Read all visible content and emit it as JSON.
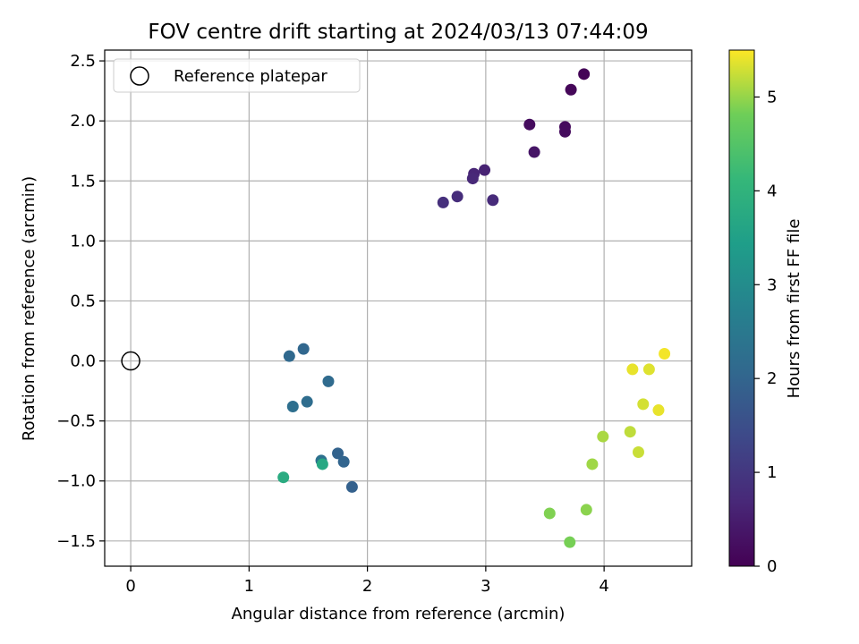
{
  "chart_data": {
    "type": "scatter",
    "title": "FOV centre drift starting at 2024/03/13 07:44:09",
    "xlabel": "Angular distance from reference (arcmin)",
    "ylabel": "Rotation from reference (arcmin)",
    "xlim": [
      -0.22,
      4.74
    ],
    "ylim": [
      -1.71,
      2.59
    ],
    "x_ticks": [
      0,
      1,
      2,
      3,
      4
    ],
    "y_ticks": [
      -1.5,
      -1.0,
      -0.5,
      0.0,
      0.5,
      1.0,
      1.5,
      2.0,
      2.5
    ],
    "x_tick_labels": [
      "0",
      "1",
      "2",
      "3",
      "4"
    ],
    "y_tick_labels": [
      "−1.5",
      "−1.0",
      "−0.5",
      "0.0",
      "0.5",
      "1.0",
      "1.5",
      "2.0",
      "2.5"
    ],
    "grid": true,
    "legend": {
      "placement": "top-left",
      "entries": [
        "Reference platepar"
      ]
    },
    "reference_point": {
      "x": 0.0,
      "y": 0.0
    },
    "colorbar": {
      "label": "Hours from first FF file",
      "colormap": "viridis",
      "range": [
        0,
        5.5
      ],
      "ticks": [
        0,
        1,
        2,
        3,
        4,
        5
      ],
      "tick_labels": [
        "0",
        "1",
        "2",
        "3",
        "4",
        "5"
      ]
    },
    "points": [
      {
        "x": 3.83,
        "y": 2.39,
        "hours": 0.05
      },
      {
        "x": 3.72,
        "y": 2.26,
        "hours": 0.1
      },
      {
        "x": 3.37,
        "y": 1.97,
        "hours": 0.2
      },
      {
        "x": 3.67,
        "y": 1.95,
        "hours": 0.15
      },
      {
        "x": 3.67,
        "y": 1.91,
        "hours": 0.18
      },
      {
        "x": 3.41,
        "y": 1.74,
        "hours": 0.35
      },
      {
        "x": 2.99,
        "y": 1.59,
        "hours": 0.6
      },
      {
        "x": 2.9,
        "y": 1.56,
        "hours": 0.65
      },
      {
        "x": 2.89,
        "y": 1.52,
        "hours": 0.7
      },
      {
        "x": 2.76,
        "y": 1.37,
        "hours": 0.8
      },
      {
        "x": 2.64,
        "y": 1.32,
        "hours": 0.85
      },
      {
        "x": 3.06,
        "y": 1.34,
        "hours": 0.75
      },
      {
        "x": 1.46,
        "y": 0.1,
        "hours": 2.05
      },
      {
        "x": 1.34,
        "y": 0.04,
        "hours": 2.1
      },
      {
        "x": 1.67,
        "y": -0.17,
        "hours": 2.15
      },
      {
        "x": 1.49,
        "y": -0.34,
        "hours": 2.2
      },
      {
        "x": 1.37,
        "y": -0.38,
        "hours": 2.25
      },
      {
        "x": 1.75,
        "y": -0.77,
        "hours": 1.95
      },
      {
        "x": 1.61,
        "y": -0.83,
        "hours": 2.3
      },
      {
        "x": 1.8,
        "y": -0.84,
        "hours": 2.0
      },
      {
        "x": 1.87,
        "y": -1.05,
        "hours": 1.9
      },
      {
        "x": 1.62,
        "y": -0.86,
        "hours": 3.7
      },
      {
        "x": 1.29,
        "y": -0.97,
        "hours": 3.8
      },
      {
        "x": 4.51,
        "y": 0.06,
        "hours": 5.45
      },
      {
        "x": 4.24,
        "y": -0.07,
        "hours": 5.4
      },
      {
        "x": 4.38,
        "y": -0.07,
        "hours": 5.35
      },
      {
        "x": 4.33,
        "y": -0.36,
        "hours": 5.3
      },
      {
        "x": 4.46,
        "y": -0.41,
        "hours": 5.4
      },
      {
        "x": 3.99,
        "y": -0.63,
        "hours": 5.1
      },
      {
        "x": 4.22,
        "y": -0.59,
        "hours": 5.2
      },
      {
        "x": 4.29,
        "y": -0.76,
        "hours": 5.25
      },
      {
        "x": 3.9,
        "y": -0.86,
        "hours": 5.05
      },
      {
        "x": 3.54,
        "y": -1.27,
        "hours": 4.9
      },
      {
        "x": 3.85,
        "y": -1.24,
        "hours": 4.95
      },
      {
        "x": 3.71,
        "y": -1.51,
        "hours": 4.85
      }
    ],
    "colors": {
      "reference_marker": "#000000",
      "grid": "#b0b0b0",
      "axes": "#000000"
    }
  }
}
